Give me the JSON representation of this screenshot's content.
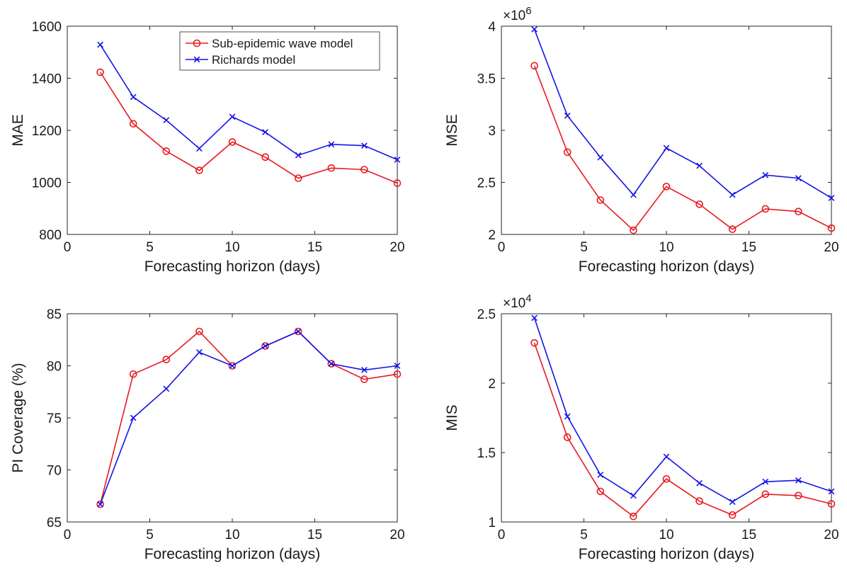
{
  "chart_data": [
    {
      "type": "line",
      "title": "",
      "xlabel": "Forecasting horizon (days)",
      "ylabel": "MAE",
      "xlim": [
        0,
        20
      ],
      "ylim": [
        800,
        1600
      ],
      "xticks": [
        0,
        5,
        10,
        15,
        20
      ],
      "yticks": [
        800,
        1000,
        1200,
        1400,
        1600
      ],
      "ytick_labels": [
        "800",
        "1000",
        "1200",
        "1400",
        "1600"
      ],
      "exponent": null,
      "legend": {
        "placement": "top-center",
        "entries": [
          "Sub-epidemic wave model",
          "Richards model"
        ]
      },
      "x": [
        2,
        4,
        6,
        8,
        10,
        12,
        14,
        16,
        18,
        20
      ],
      "series": [
        {
          "name": "Sub-epidemic wave model",
          "color": "#e8191f",
          "marker": "circle",
          "values": [
            1423,
            1225,
            1120,
            1046,
            1155,
            1097,
            1016,
            1055,
            1049,
            997
          ]
        },
        {
          "name": "Richards model",
          "color": "#1414e6",
          "marker": "x",
          "values": [
            1529,
            1328,
            1239,
            1130,
            1252,
            1193,
            1104,
            1146,
            1141,
            1087
          ]
        }
      ]
    },
    {
      "type": "line",
      "title": "",
      "xlabel": "Forecasting horizon (days)",
      "ylabel": "MSE",
      "xlim": [
        0,
        20
      ],
      "ylim": [
        2,
        4
      ],
      "xticks": [
        0,
        5,
        10,
        15,
        20
      ],
      "yticks": [
        2,
        2.5,
        3,
        3.5,
        4
      ],
      "ytick_labels": [
        "2",
        "2.5",
        "3",
        "3.5",
        "4"
      ],
      "exponent": {
        "base": "×10",
        "power": "6"
      },
      "legend": null,
      "x": [
        2,
        4,
        6,
        8,
        10,
        12,
        14,
        16,
        18,
        20
      ],
      "series": [
        {
          "name": "Sub-epidemic wave model",
          "color": "#e8191f",
          "marker": "circle",
          "values": [
            3.62,
            2.79,
            2.33,
            2.04,
            2.46,
            2.29,
            2.05,
            2.245,
            2.22,
            2.06
          ]
        },
        {
          "name": "Richards model",
          "color": "#1414e6",
          "marker": "x",
          "values": [
            3.97,
            3.14,
            2.74,
            2.38,
            2.83,
            2.66,
            2.38,
            2.57,
            2.54,
            2.35
          ]
        }
      ]
    },
    {
      "type": "line",
      "title": "",
      "xlabel": "Forecasting horizon (days)",
      "ylabel": "PI Coverage (%)",
      "xlim": [
        0,
        20
      ],
      "ylim": [
        65,
        85
      ],
      "xticks": [
        0,
        5,
        10,
        15,
        20
      ],
      "yticks": [
        65,
        70,
        75,
        80,
        85
      ],
      "ytick_labels": [
        "65",
        "70",
        "75",
        "80",
        "85"
      ],
      "exponent": null,
      "legend": null,
      "x": [
        2,
        4,
        6,
        8,
        10,
        12,
        14,
        16,
        18,
        20
      ],
      "series": [
        {
          "name": "Sub-epidemic wave model",
          "color": "#e8191f",
          "marker": "circle",
          "values": [
            66.7,
            79.2,
            80.6,
            83.3,
            80.0,
            81.9,
            83.3,
            80.2,
            78.7,
            79.2
          ]
        },
        {
          "name": "Richards model",
          "color": "#1414e6",
          "marker": "x",
          "values": [
            66.7,
            75.0,
            77.8,
            81.3,
            80.0,
            81.9,
            83.3,
            80.2,
            79.6,
            80.0
          ]
        }
      ]
    },
    {
      "type": "line",
      "title": "",
      "xlabel": "Forecasting horizon (days)",
      "ylabel": "MIS",
      "xlim": [
        0,
        20
      ],
      "ylim": [
        1,
        2.5
      ],
      "xticks": [
        0,
        5,
        10,
        15,
        20
      ],
      "yticks": [
        1,
        1.5,
        2,
        2.5
      ],
      "ytick_labels": [
        "1",
        "1.5",
        "2",
        "2.5"
      ],
      "exponent": {
        "base": "×10",
        "power": "4"
      },
      "legend": null,
      "x": [
        2,
        4,
        6,
        8,
        10,
        12,
        14,
        16,
        18,
        20
      ],
      "series": [
        {
          "name": "Sub-epidemic wave model",
          "color": "#e8191f",
          "marker": "circle",
          "values": [
            2.29,
            1.61,
            1.22,
            1.04,
            1.31,
            1.15,
            1.05,
            1.2,
            1.19,
            1.13
          ]
        },
        {
          "name": "Richards model",
          "color": "#1414e6",
          "marker": "x",
          "values": [
            2.47,
            1.76,
            1.34,
            1.19,
            1.47,
            1.28,
            1.145,
            1.29,
            1.3,
            1.22
          ]
        }
      ]
    }
  ]
}
